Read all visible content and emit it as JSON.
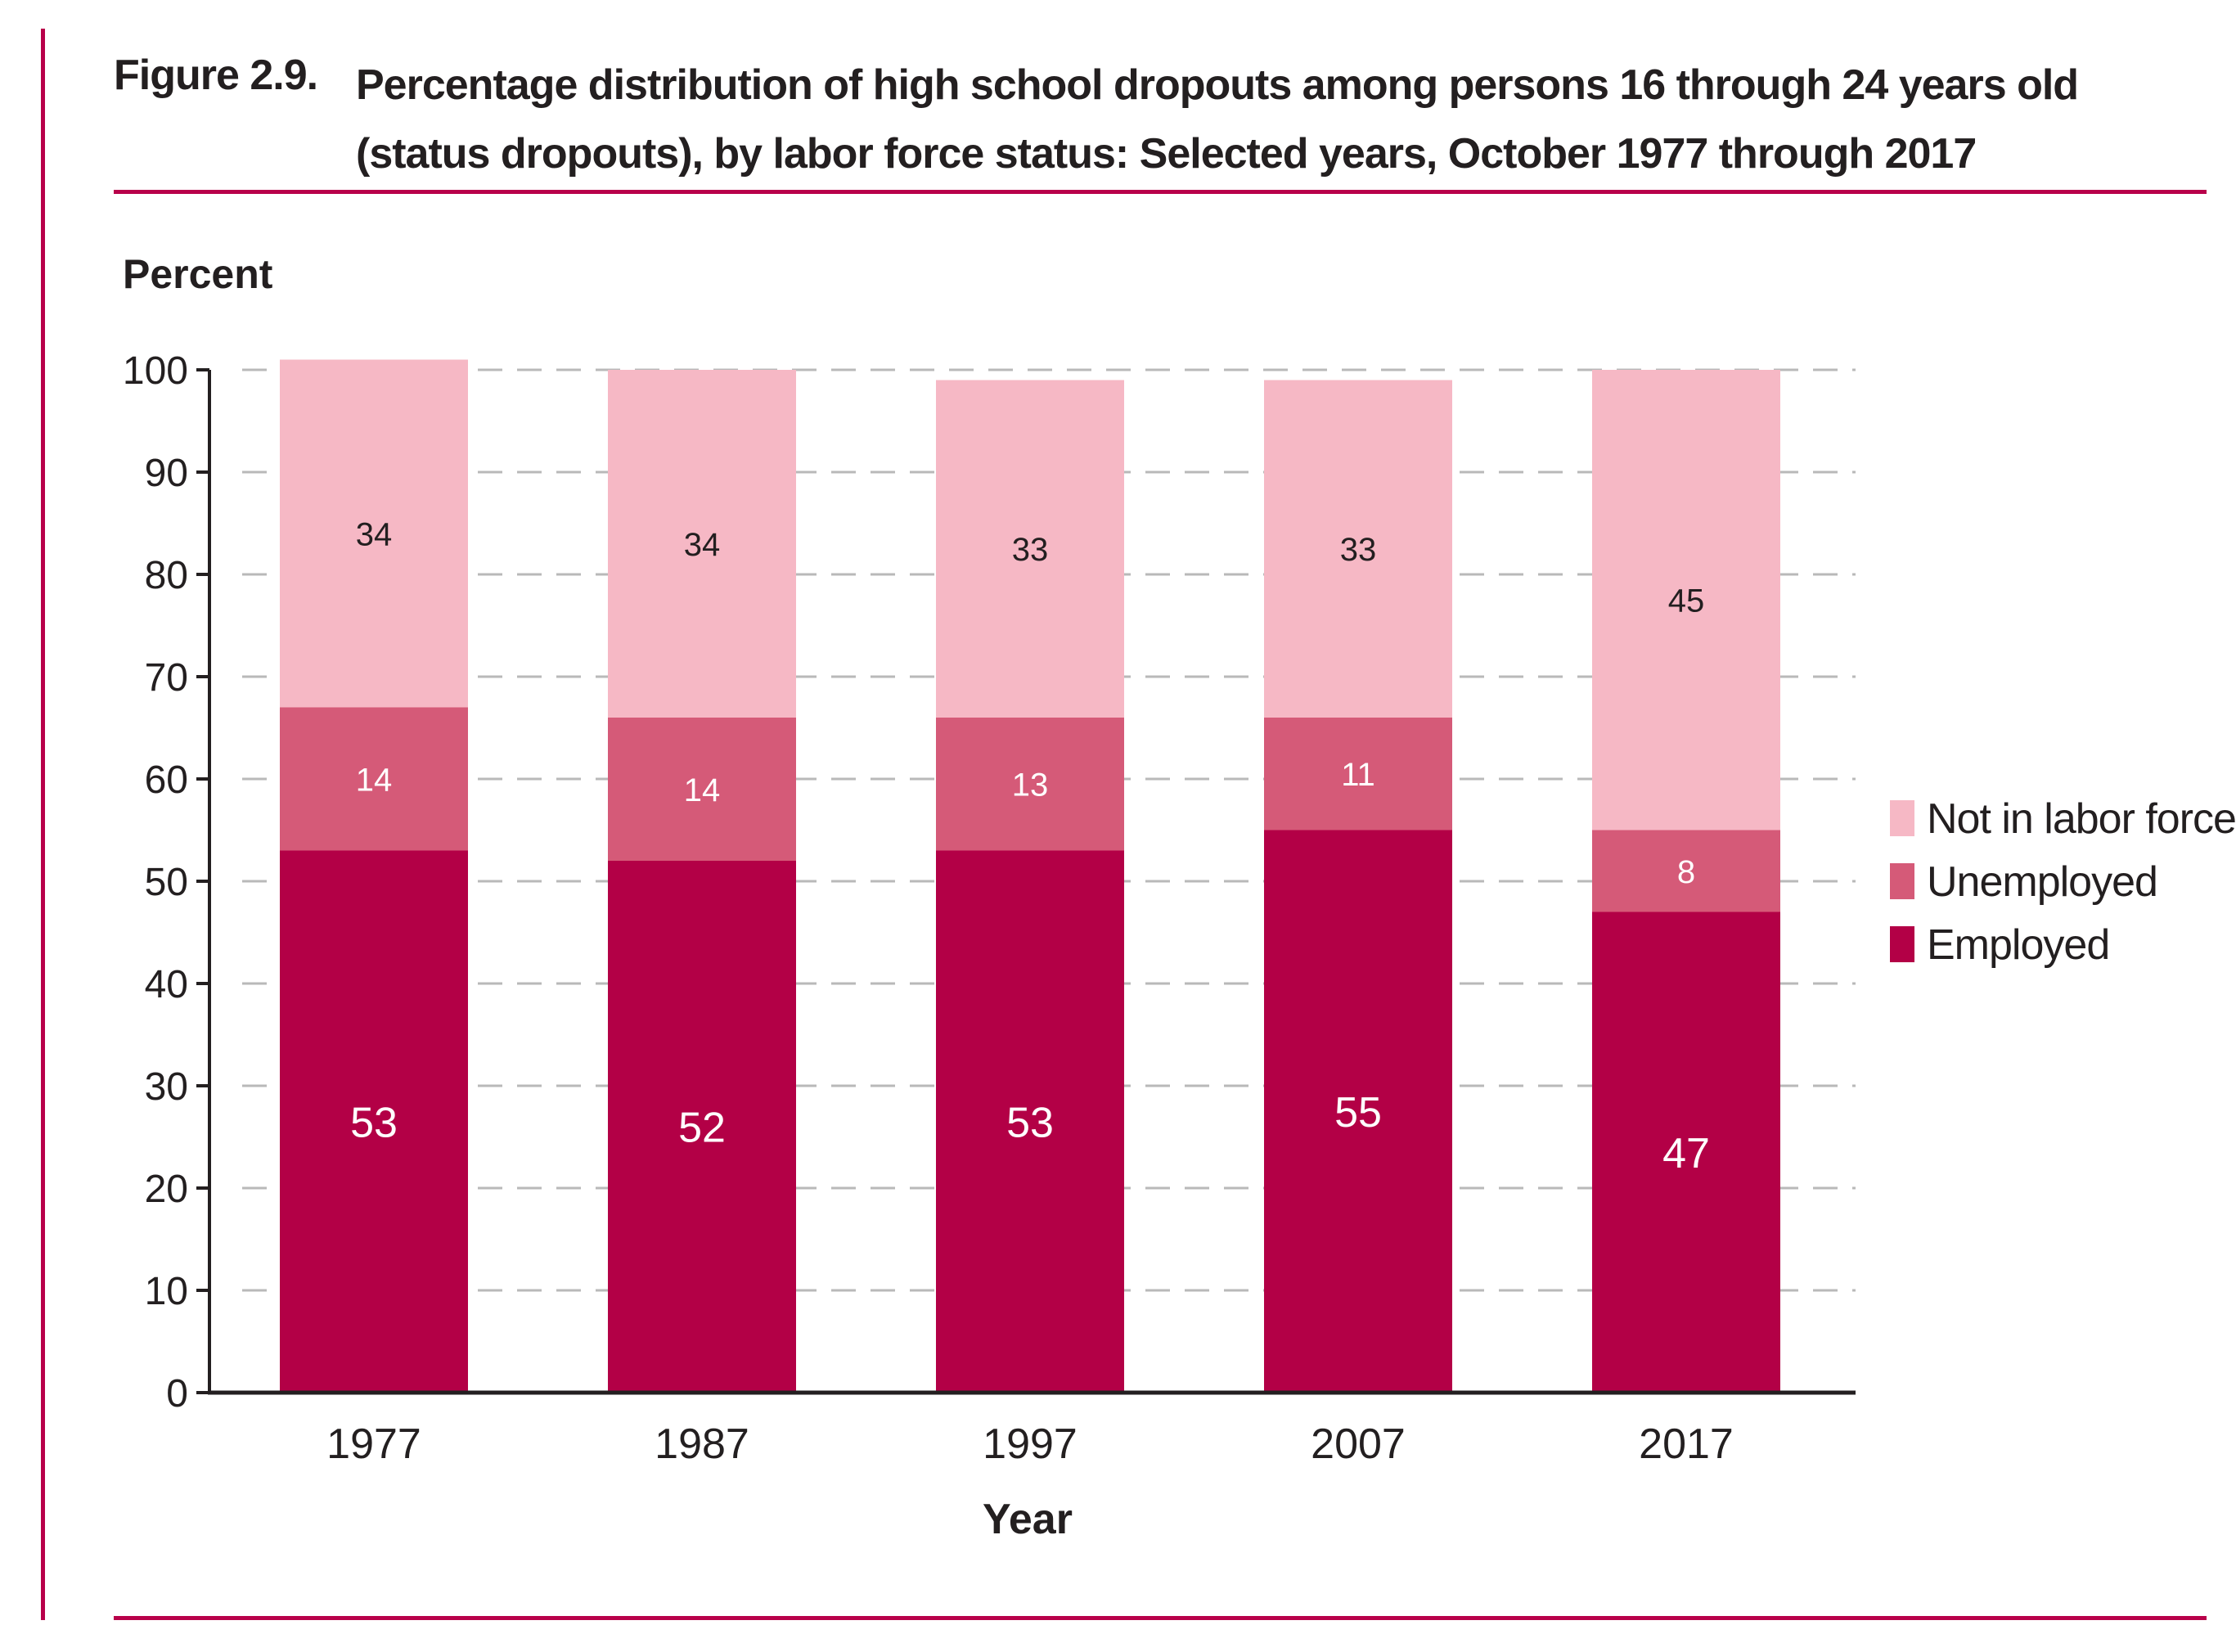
{
  "figure": {
    "number": "Figure 2.9.",
    "title": "Percentage distribution of high school dropouts among persons 16 through 24 years old (status dropouts), by labor force status: Selected years, October 1977 through 2017"
  },
  "colors": {
    "rule": "#b8004a",
    "employed": "#b30046",
    "unemployed": "#d55a78",
    "not_in_labor_force": "#f6b8c5",
    "grid": "#b9b9b9",
    "axis": "#231f20"
  },
  "chart_data": {
    "type": "bar",
    "stacked": true,
    "title": "Percentage distribution of high school dropouts among persons 16 through 24 years old (status dropouts), by labor force status: Selected years, October 1977 through 2017",
    "xlabel": "Year",
    "ylabel": "Percent",
    "ylim": [
      0,
      100
    ],
    "yticks": [
      0,
      10,
      20,
      30,
      40,
      50,
      60,
      70,
      80,
      90,
      100
    ],
    "grid": true,
    "legend_position": "right",
    "categories": [
      "1977",
      "1987",
      "1997",
      "2007",
      "2017"
    ],
    "series": [
      {
        "name": "Employed",
        "values": [
          53,
          52,
          53,
          55,
          47
        ]
      },
      {
        "name": "Unemployed",
        "values": [
          14,
          14,
          13,
          11,
          8
        ]
      },
      {
        "name": "Not in labor force",
        "values": [
          34,
          34,
          33,
          33,
          45
        ]
      }
    ],
    "legend": [
      "Not in labor force",
      "Unemployed",
      "Employed"
    ]
  }
}
